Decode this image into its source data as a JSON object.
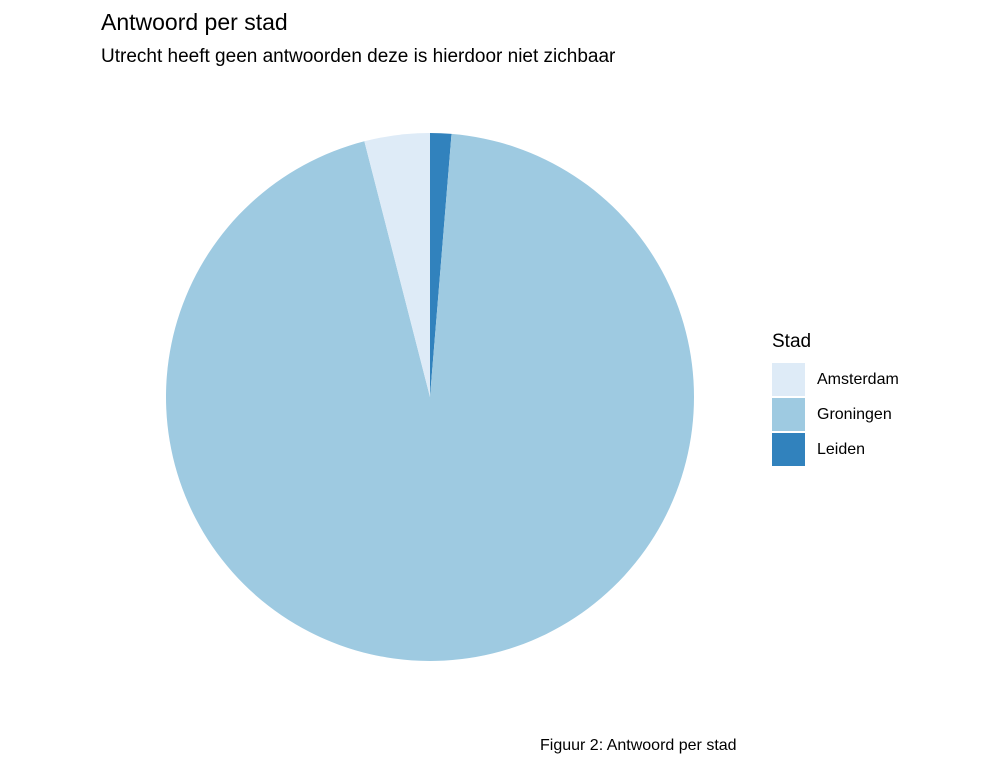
{
  "chart_data": {
    "type": "pie",
    "title": "Antwoord per stad",
    "subtitle": "Utrecht heeft geen antwoorden deze is hierdoor niet zichbaar",
    "legend": {
      "title": "Stad",
      "placement": "right"
    },
    "slices": [
      {
        "label": "Leiden",
        "value": 1.3,
        "color": "#3182BD"
      },
      {
        "label": "Groningen",
        "value": 94.7,
        "color": "#9ECAE1"
      },
      {
        "label": "Amsterdam",
        "value": 4.0,
        "color": "#DEEBF7"
      }
    ],
    "legend_entries": [
      {
        "label": "Amsterdam",
        "color": "#DEEBF7"
      },
      {
        "label": "Groningen",
        "color": "#9ECAE1"
      },
      {
        "label": "Leiden",
        "color": "#3182BD"
      }
    ],
    "caption": "Figuur 2: Antwoord per stad"
  }
}
